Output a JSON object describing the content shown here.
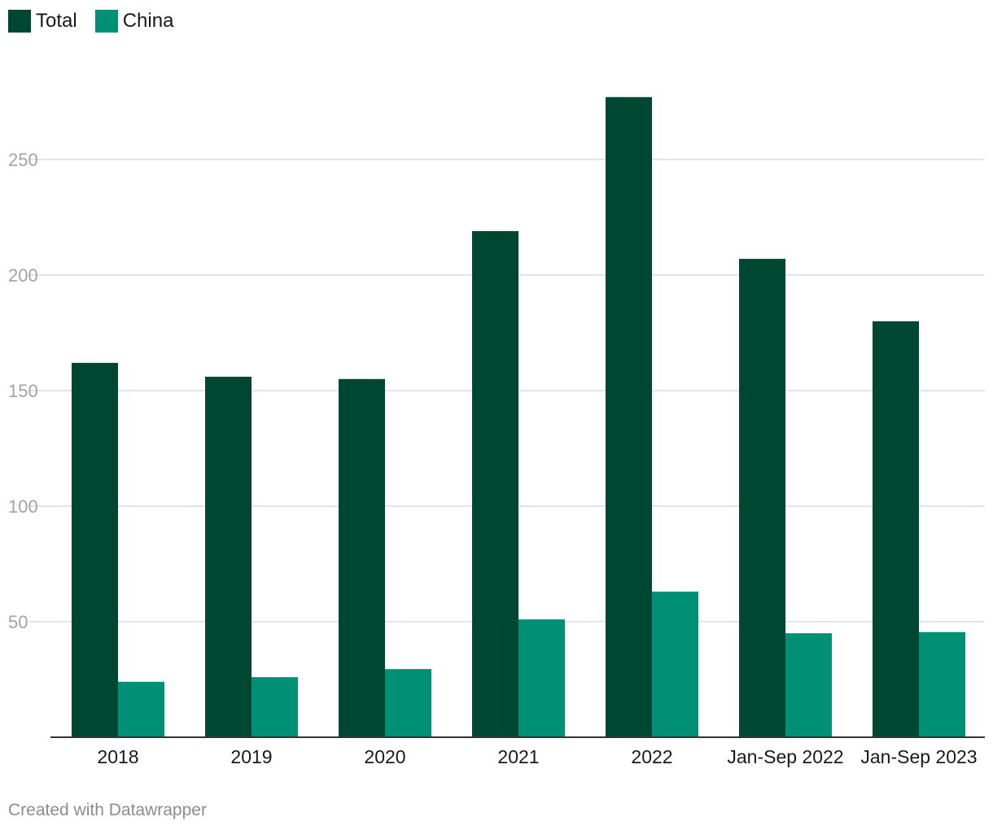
{
  "chart_data": {
    "type": "bar",
    "categories": [
      "2018",
      "2019",
      "2020",
      "2021",
      "2022",
      "Jan-Sep 2022",
      "Jan-Sep 2023"
    ],
    "series": [
      {
        "name": "Total",
        "color": "#004731",
        "values": [
          162,
          156,
          155,
          219,
          277,
          207,
          180
        ]
      },
      {
        "name": "China",
        "color": "#009076",
        "values": [
          24,
          26,
          29.5,
          51,
          63,
          45,
          45.5
        ]
      }
    ],
    "title": "",
    "xlabel": "",
    "ylabel": "",
    "ylim": [
      0,
      300
    ],
    "yticks": [
      50,
      100,
      150,
      200,
      250
    ],
    "grid": true,
    "legend": "top-left"
  },
  "footer": {
    "credit": "Created with Datawrapper"
  }
}
